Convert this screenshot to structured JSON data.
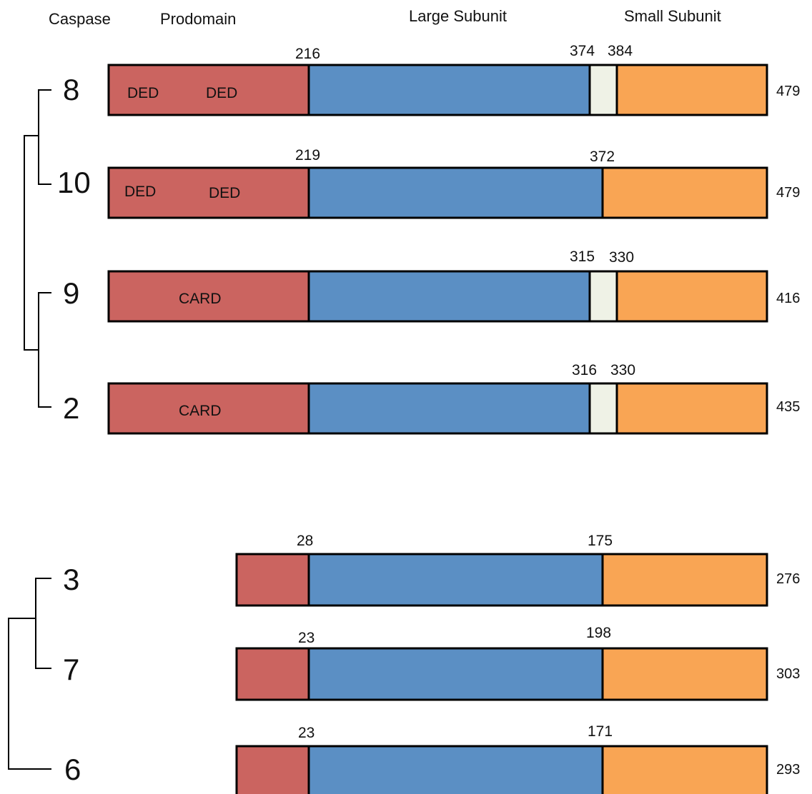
{
  "headers": {
    "caspase": "Caspase",
    "prodomain": "Prodomain",
    "large_subunit": "Large Subunit",
    "small_subunit": "Small Subunit"
  },
  "colors": {
    "prodomain": "#cb6460",
    "large_subunit": "#5b8fc4",
    "linker": "#eff2e6",
    "small_subunit": "#f9a554",
    "outline": "#000000"
  },
  "caspases": [
    {
      "id": "8",
      "length": "479",
      "prodomain_end": "216",
      "large_end": "374",
      "small_start": "384",
      "domains": [
        "DED",
        "DED"
      ]
    },
    {
      "id": "10",
      "length": "479",
      "prodomain_end": "219",
      "large_end": "372",
      "small_start": null,
      "domains": [
        "DED",
        "DED"
      ]
    },
    {
      "id": "9",
      "length": "416",
      "prodomain_end": null,
      "large_end": "315",
      "small_start": "330",
      "domains": [
        "CARD"
      ]
    },
    {
      "id": "2",
      "length": "435",
      "prodomain_end": null,
      "large_end": "316",
      "small_start": "330",
      "domains": [
        "CARD"
      ]
    },
    {
      "id": "3",
      "length": "276",
      "prodomain_end": "28",
      "large_end": "175",
      "small_start": null,
      "domains": []
    },
    {
      "id": "7",
      "length": "303",
      "prodomain_end": "23",
      "large_end": "198",
      "small_start": null,
      "domains": []
    },
    {
      "id": "6",
      "length": "293",
      "prodomain_end": "23",
      "large_end": "171",
      "small_start": null,
      "domains": []
    }
  ]
}
